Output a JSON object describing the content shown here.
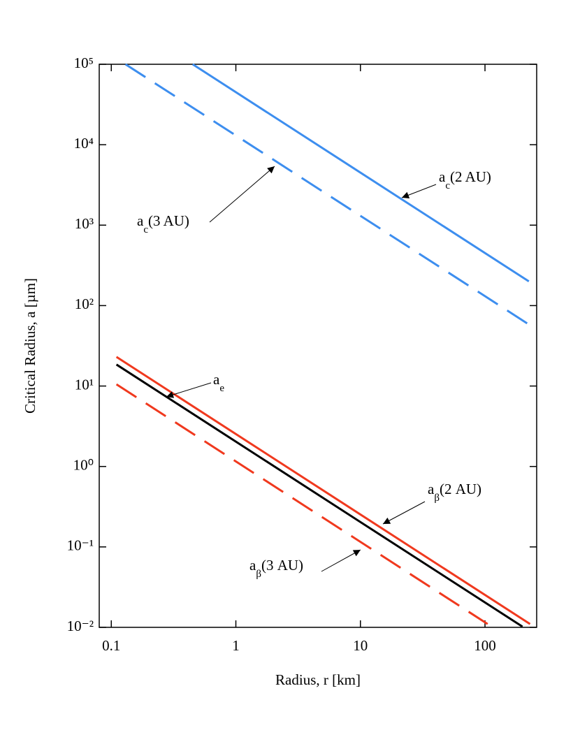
{
  "chart_data": {
    "type": "line",
    "xlabel": "Radius, r [km]",
    "ylabel": "Critical Radius, a [µm]",
    "xscale": "log",
    "yscale": "log",
    "xlim": [
      0.08,
      260
    ],
    "ylim": [
      0.01,
      100000
    ],
    "xticks": [
      0.1,
      1,
      10,
      100
    ],
    "yticks": [
      {
        "value": 0.01,
        "label": "10⁻²"
      },
      {
        "value": 0.1,
        "label": "10⁻¹"
      },
      {
        "value": 1,
        "label": "10⁰"
      },
      {
        "value": 10,
        "label": "10¹"
      },
      {
        "value": 100,
        "label": "10²"
      },
      {
        "value": 1000,
        "label": "10³"
      },
      {
        "value": 10000,
        "label": "10⁴"
      },
      {
        "value": 100000,
        "label": "10⁵"
      }
    ],
    "series": [
      {
        "name": "a_c(2 AU)",
        "color": "#3d8eef",
        "linestyle": "solid",
        "x": [
          0.45,
          225
        ],
        "values": [
          100000,
          200
        ]
      },
      {
        "name": "a_c(3 AU)",
        "color": "#3d8eef",
        "linestyle": "dashed",
        "x": [
          0.13,
          230
        ],
        "values": [
          100000,
          57
        ]
      },
      {
        "name": "a_e",
        "color": "#000000",
        "linestyle": "solid",
        "x": [
          0.11,
          200
        ],
        "values": [
          18.5,
          0.0102
        ]
      },
      {
        "name": "a_β(2 AU)",
        "color": "#f0391e",
        "linestyle": "solid",
        "x": [
          0.11,
          230
        ],
        "values": [
          23,
          0.011
        ]
      },
      {
        "name": "a_β(3 AU)",
        "color": "#f0391e",
        "linestyle": "dashed",
        "x": [
          0.11,
          105
        ],
        "values": [
          10.5,
          0.011
        ]
      }
    ],
    "annotations": [
      {
        "text": "a",
        "sub": "c",
        "rest": "(2 AU)"
      },
      {
        "text": "a",
        "sub": "c",
        "rest": "(3 AU)"
      },
      {
        "text": "a",
        "sub": "e"
      },
      {
        "text": "a",
        "sub": "β",
        "rest": "(2 AU)"
      },
      {
        "text": "a",
        "sub": "β",
        "rest": "(3 AU)"
      }
    ]
  }
}
